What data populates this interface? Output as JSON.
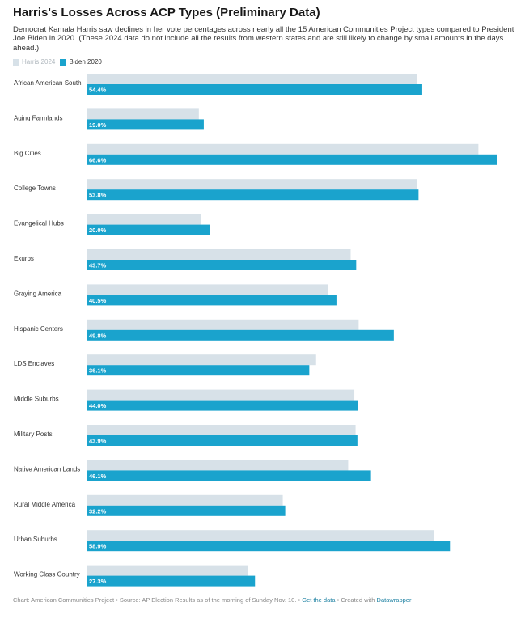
{
  "header": {
    "title": "Harris's Losses Across ACP Types (Preliminary Data)",
    "subtitle": "Democrat Kamala Harris saw declines in her vote percentages across nearly all the 15 American Communities Project types compared to President Joe Biden in 2020. (These 2024 data do not include all the results from western states and are still likely to change by small amounts in the days ahead.)"
  },
  "colors": {
    "harris": "#d7e1e8",
    "biden": "#1aa3cd"
  },
  "chart_data": {
    "type": "bar",
    "orientation": "horizontal",
    "categories": [
      "African American South",
      "Aging Farmlands",
      "Big Cities",
      "College Towns",
      "Evangelical Hubs",
      "Exurbs",
      "Graying America",
      "Hispanic Centers",
      "LDS Enclaves",
      "Middle Suburbs",
      "Military Posts",
      "Native American Lands",
      "Rural Middle America",
      "Urban Suburbs",
      "Working Class Country"
    ],
    "series": [
      {
        "name": "Harris 2024",
        "values": [
          53.5,
          18.2,
          63.5,
          53.5,
          18.5,
          42.8,
          39.2,
          44.1,
          37.2,
          43.4,
          43.6,
          42.4,
          31.8,
          56.3,
          26.2
        ]
      },
      {
        "name": "Biden 2020",
        "values": [
          54.4,
          19.0,
          66.6,
          53.8,
          20.0,
          43.7,
          40.5,
          49.8,
          36.1,
          44.0,
          43.9,
          46.1,
          32.2,
          58.9,
          27.3
        ],
        "value_labels": [
          "54.4%",
          "19.0%",
          "66.6%",
          "53.8%",
          "20.0%",
          "43.7%",
          "40.5%",
          "49.8%",
          "36.1%",
          "44.0%",
          "43.9%",
          "46.1%",
          "32.2%",
          "58.9%",
          "27.3%"
        ]
      }
    ],
    "xlim": [
      0,
      66.6
    ],
    "legend": "top-left"
  },
  "legend": {
    "harris_label": "Harris 2024",
    "biden_label": "Biden 2020"
  },
  "footer": {
    "source_text": "Chart: American Communities Project • Source: AP Election Results as of the morning of Sunday Nov. 10. •",
    "get_data": "Get the data",
    "created_with": "• Created with",
    "datawrapper": "Datawrapper"
  }
}
